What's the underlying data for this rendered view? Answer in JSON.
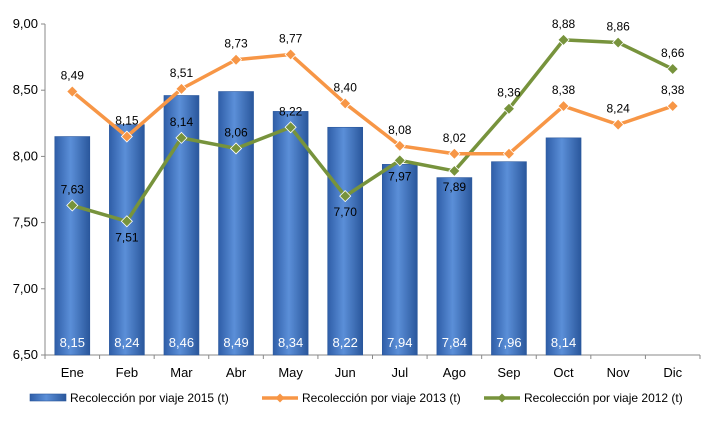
{
  "chart_data": {
    "type": "bar+line",
    "categories": [
      "Ene",
      "Feb",
      "Mar",
      "Abr",
      "May",
      "Jun",
      "Jul",
      "Ago",
      "Sep",
      "Oct",
      "Nov",
      "Dic"
    ],
    "ylim": [
      6.5,
      9.0
    ],
    "yticks": [
      "6,50",
      "7,00",
      "7,50",
      "8,00",
      "8,50",
      "9,00"
    ],
    "ytick_values": [
      6.5,
      7.0,
      7.5,
      8.0,
      8.5,
      9.0
    ],
    "grid": false,
    "legend_position": "bottom",
    "series": [
      {
        "name": "Recolección por viaje 2015 (t)",
        "type": "bar",
        "color": "#3f72c0",
        "values": [
          8.15,
          8.24,
          8.46,
          8.49,
          8.34,
          8.22,
          7.94,
          7.84,
          7.96,
          8.14,
          null,
          null
        ],
        "labels": [
          "8,15",
          "8,24",
          "8,46",
          "8,49",
          "8,34",
          "8,22",
          "7,94",
          "7,84",
          "7,96",
          "8,14",
          null,
          null
        ]
      },
      {
        "name": "Recolección por viaje 2013 (t)",
        "type": "line",
        "color": "#f79646",
        "values": [
          8.49,
          8.15,
          8.51,
          8.73,
          8.77,
          8.4,
          8.08,
          8.02,
          8.02,
          8.38,
          8.24,
          8.38
        ],
        "labels": [
          "8,49",
          "8,15",
          "8,51",
          "8,73",
          "8,77",
          "8,40",
          "8,08",
          "8,02",
          null,
          "8,38",
          "8,24",
          "8,38"
        ]
      },
      {
        "name": "Recolección por viaje 2012 (t)",
        "type": "line",
        "color": "#77933c",
        "values": [
          7.63,
          7.51,
          8.14,
          8.06,
          8.22,
          7.7,
          7.97,
          7.89,
          8.36,
          8.88,
          8.86,
          8.66
        ],
        "labels": [
          "7,63",
          "7,51",
          "8,14",
          "8,06",
          "8,22",
          "7,70",
          "7,97",
          "7,89",
          "8,36",
          "8,88",
          "8,86",
          "8,66"
        ]
      }
    ]
  }
}
